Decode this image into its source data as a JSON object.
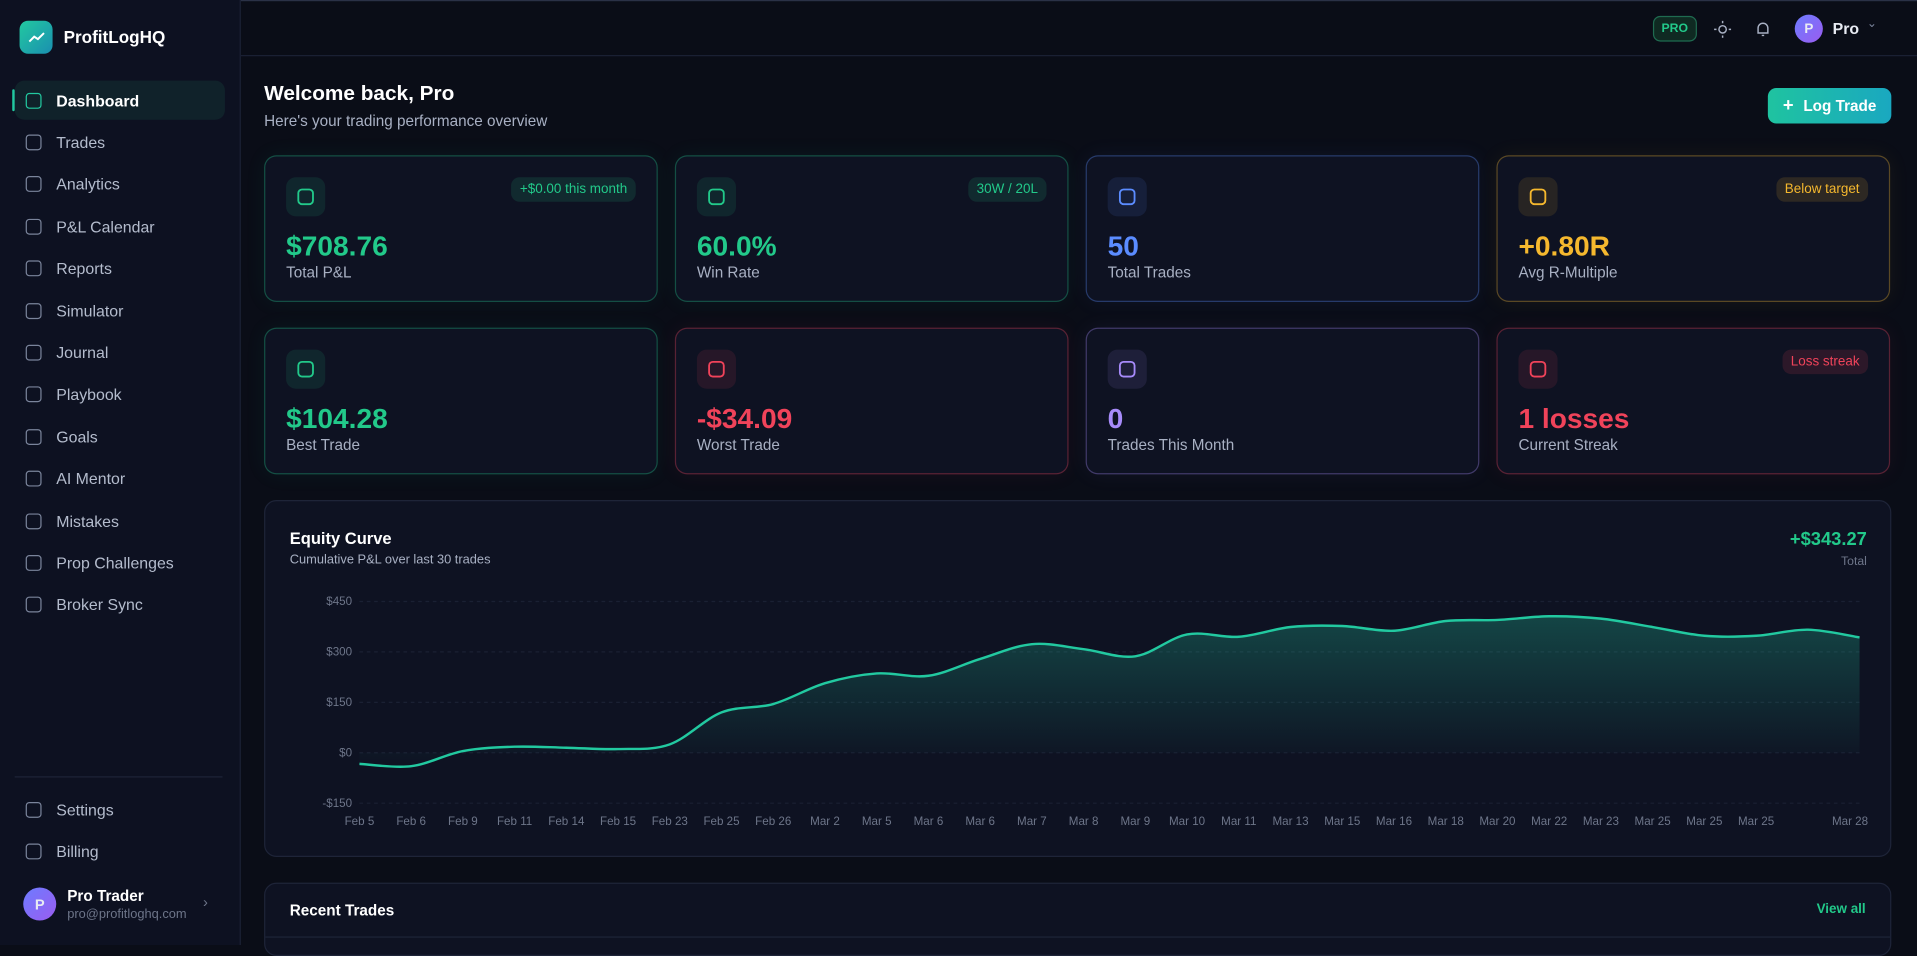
{
  "brand": "ProfitLogHQ",
  "nav": [
    "Dashboard",
    "Trades",
    "Analytics",
    "P&L Calendar",
    "Reports",
    "Simulator",
    "Journal",
    "Playbook",
    "Goals",
    "AI Mentor",
    "Mistakes",
    "Prop Challenges",
    "Broker Sync"
  ],
  "nav_footer": [
    "Settings",
    "Billing"
  ],
  "user": {
    "initial": "P",
    "name": "Pro Trader",
    "email": "pro@profitloghq.com"
  },
  "topbar": {
    "badge": "PRO",
    "initial": "P",
    "name": "Pro"
  },
  "header": {
    "title": "Welcome back, Pro",
    "subtitle": "Here's your trading performance overview",
    "button": "Log Trade"
  },
  "cards": [
    {
      "value": "$708.76",
      "label": "Total P&L",
      "badge": "+$0.00 this month",
      "color": "#22c98a"
    },
    {
      "value": "60.0%",
      "label": "Win Rate",
      "badge": "30W / 20L",
      "color": "#22c98a"
    },
    {
      "value": "50",
      "label": "Total Trades",
      "color": "#5b8cff"
    },
    {
      "value": "+0.80R",
      "label": "Avg R-Multiple",
      "badge": "Below target",
      "color": "#f5b82e"
    },
    {
      "value": "$104.28",
      "label": "Best Trade",
      "color": "#22c98a"
    },
    {
      "value": "-$34.09",
      "label": "Worst Trade",
      "color": "#f0435a"
    },
    {
      "value": "0",
      "label": "Trades This Month",
      "color": "#a78bfa"
    },
    {
      "value": "1 losses",
      "label": "Current Streak",
      "badge": "Loss streak",
      "color": "#f0435a"
    }
  ],
  "equity": {
    "title": "Equity Curve",
    "subtitle": "Cumulative P&L over last 30 trades",
    "total": "+$343.27",
    "total_label": "Total",
    "chart_data": {
      "type": "line",
      "color": "#22c9a0",
      "categories": [
        "Feb 5",
        "Feb 6",
        "Feb 9",
        "Feb 11",
        "Feb 14",
        "Feb 15",
        "Feb 23",
        "Feb 25",
        "Feb 26",
        "Mar 2",
        "Mar 5",
        "Mar 6",
        "Mar 6",
        "Mar 7",
        "Mar 8",
        "Mar 9",
        "Mar 10",
        "Mar 11",
        "Mar 13",
        "Mar 15",
        "Mar 16",
        "Mar 18",
        "Mar 20",
        "Mar 22",
        "Mar 23",
        "Mar 25",
        "Mar 25",
        "Mar 25",
        null,
        "Mar 28"
      ],
      "values": [
        -33,
        -40,
        5,
        18,
        15,
        11,
        25,
        120,
        145,
        207,
        236,
        229,
        279,
        323,
        308,
        287,
        352,
        345,
        374,
        377,
        363,
        392,
        395,
        406,
        399,
        374,
        348,
        348,
        366,
        343
      ],
      "ylim": [
        -150,
        450
      ],
      "yticks": [
        {
          "value": 450,
          "label": "$450"
        },
        {
          "value": 300,
          "label": "$300"
        },
        {
          "value": 150,
          "label": "$150"
        },
        {
          "value": 0,
          "label": "$0"
        },
        {
          "value": -150,
          "label": "-$150"
        }
      ],
      "grid": true
    }
  },
  "recent": {
    "title": "Recent Trades",
    "link": "View all"
  }
}
